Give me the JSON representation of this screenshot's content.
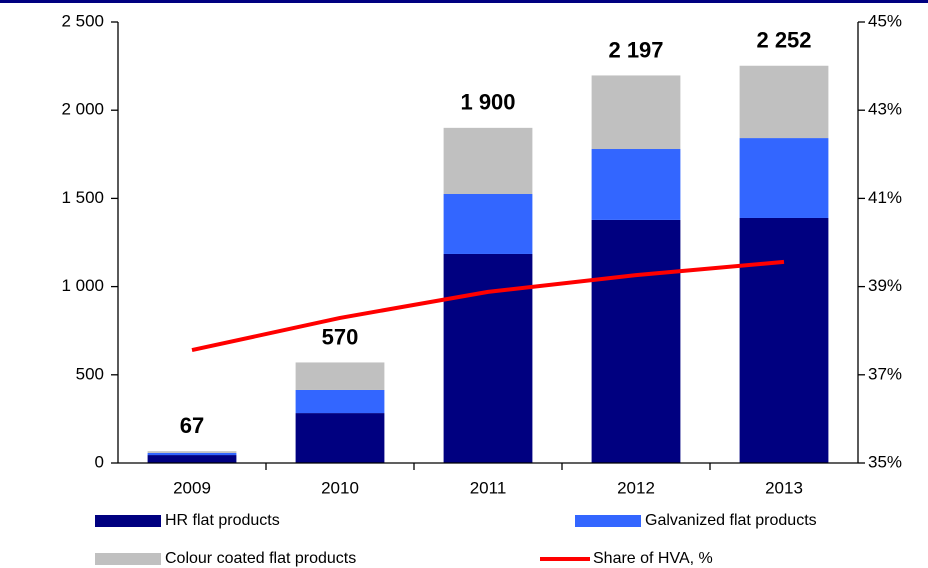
{
  "chart_data": {
    "type": "bar",
    "stacked": true,
    "categories": [
      "2009",
      "2010",
      "2011",
      "2012",
      "2013"
    ],
    "series": [
      {
        "name": "HR flat products",
        "color": "#000080",
        "values": [
          45,
          283,
          1185,
          1378,
          1389
        ]
      },
      {
        "name": "Galvanized flat products",
        "color": "#3366ff",
        "values": [
          12,
          131,
          340,
          402,
          453
        ]
      },
      {
        "name": "Colour coated flat products",
        "color": "#c0c0c0",
        "values": [
          10,
          156,
          375,
          417,
          410
        ]
      },
      {
        "name": "Share of HVA, %",
        "color": "#ff0000",
        "type": "line",
        "axis": "y2",
        "values": [
          37.56,
          38.29,
          38.88,
          39.26,
          39.56
        ]
      }
    ],
    "totals": [
      67,
      570,
      1900,
      2197,
      2252
    ],
    "total_labels": [
      "67",
      "570",
      "1 900",
      "2 197",
      "2 252"
    ],
    "ylim": [
      0,
      2500
    ],
    "yticks": [
      0,
      500,
      {
        "value": 1000,
        "label": "1 000"
      },
      {
        "value": 1500,
        "label": "1 500"
      },
      {
        "value": 2000,
        "label": "2 000"
      },
      {
        "value": 2500,
        "label": "2 500"
      }
    ],
    "y2lim": [
      35,
      45
    ],
    "y2ticks": [
      {
        "value": 35,
        "label": "35%"
      },
      {
        "value": 37,
        "label": "37%"
      },
      {
        "value": 39,
        "label": "39%"
      },
      {
        "value": 41,
        "label": "41%"
      },
      {
        "value": 43,
        "label": "43%"
      },
      {
        "value": 45,
        "label": "45%"
      }
    ]
  }
}
